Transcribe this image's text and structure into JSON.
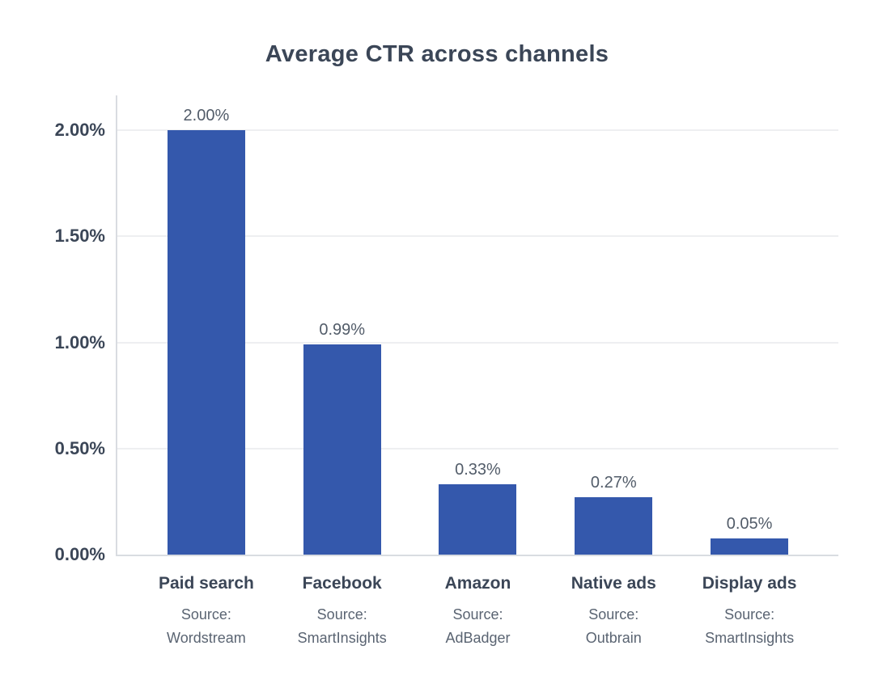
{
  "chart_data": {
    "type": "bar",
    "title": "Average CTR across channels",
    "categories": [
      "Paid search",
      "Facebook",
      "Amazon",
      "Native ads",
      "Display ads"
    ],
    "values": [
      2.0,
      0.99,
      0.33,
      0.27,
      0.05
    ],
    "data_labels": [
      "2.00%",
      "0.99%",
      "0.33%",
      "0.27%",
      "0.05%"
    ],
    "sources": [
      {
        "prefix": "Source:",
        "name": "Wordstream"
      },
      {
        "prefix": "Source:",
        "name": "SmartInsights"
      },
      {
        "prefix": "Source:",
        "name": "AdBadger"
      },
      {
        "prefix": "Source:",
        "name": "Outbrain"
      },
      {
        "prefix": "Source:",
        "name": "SmartInsights"
      }
    ],
    "xlabel": "",
    "ylabel": "",
    "y_ticks": [
      "0.00%",
      "0.50%",
      "1.00%",
      "1.50%",
      "2.00%"
    ],
    "y_tick_values": [
      0,
      0.5,
      1.0,
      1.5,
      2.0
    ],
    "ylim": [
      0,
      2.0
    ],
    "grid": true,
    "legend": false,
    "colors": {
      "bar": "#3458AC",
      "title_text": "#3B4657",
      "tick_text": "#3B4657",
      "label_text": "#525C69",
      "source_text": "#5A6472",
      "gridline": "#EEEFF1",
      "axis_line": "#D9DCE1",
      "background": "#FFFFFF"
    }
  }
}
